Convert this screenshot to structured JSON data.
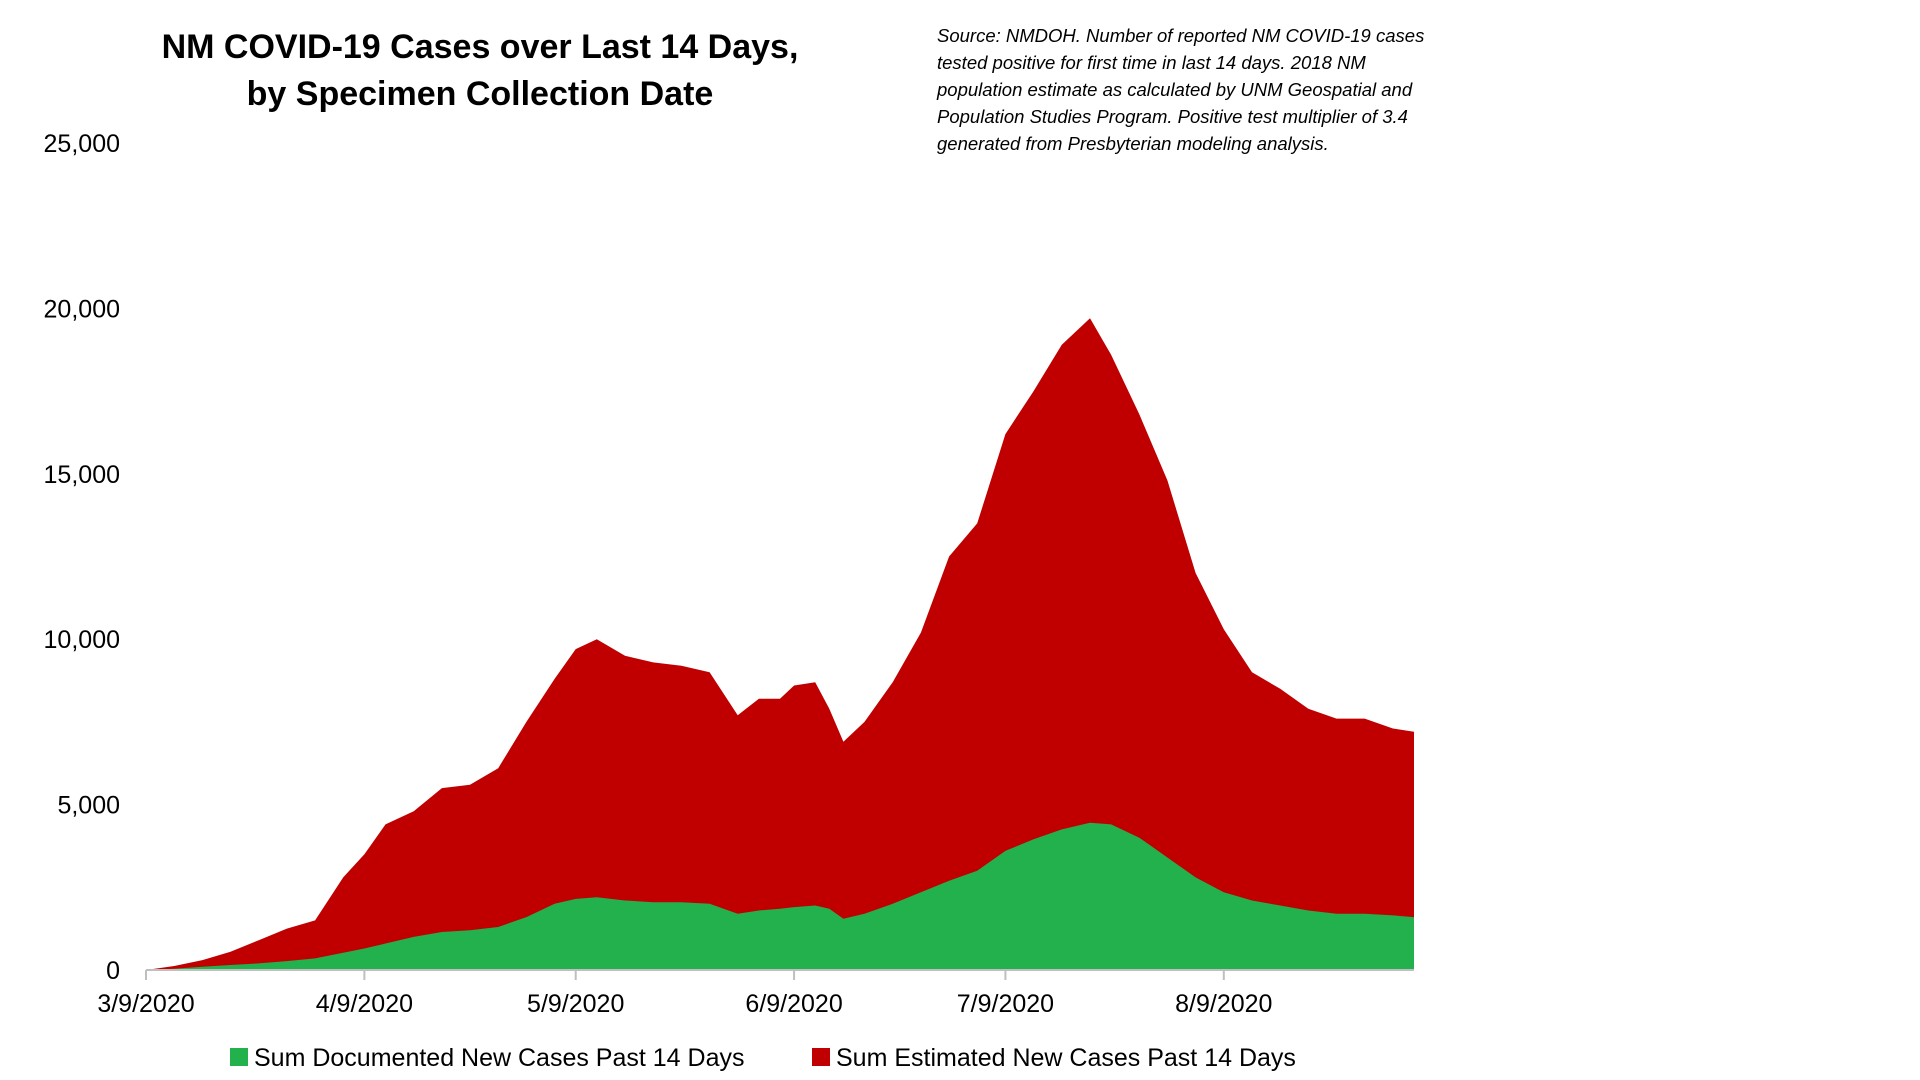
{
  "chart_data": {
    "type": "area",
    "stacked": true,
    "title_lines": [
      "NM COVID-19 Cases over Last 14 Days,",
      "by Specimen Collection Date"
    ],
    "source_note_lines": [
      "Source: NMDOH. Number of reported NM COVID-19 cases",
      "tested positive for first time in last 14 days. 2018 NM",
      "population estimate as calculated by UNM Geospatial and",
      "Population Studies Program. Positive test multiplier of 3.4",
      "generated from Presbyterian modeling analysis."
    ],
    "xlabel": "",
    "ylabel": "",
    "x_start": "2020-03-09",
    "x_end": "2020-09-05",
    "x_ticks": [
      {
        "date": "2020-03-09",
        "label": "3/9/2020"
      },
      {
        "date": "2020-04-09",
        "label": "4/9/2020"
      },
      {
        "date": "2020-05-09",
        "label": "5/9/2020"
      },
      {
        "date": "2020-06-09",
        "label": "6/9/2020"
      },
      {
        "date": "2020-07-09",
        "label": "7/9/2020"
      },
      {
        "date": "2020-08-09",
        "label": "8/9/2020"
      }
    ],
    "y_ticks": [
      {
        "value": 0,
        "label": "0"
      },
      {
        "value": 5000,
        "label": "5,000"
      },
      {
        "value": 10000,
        "label": "10,000"
      },
      {
        "value": 15000,
        "label": "15,000"
      },
      {
        "value": 20000,
        "label": "20,000"
      },
      {
        "value": 25000,
        "label": "25,000"
      }
    ],
    "ylim": [
      0,
      25000
    ],
    "grid": false,
    "legend_position": "bottom",
    "series": [
      {
        "name": "Sum Documented New Cases Past 14 Days",
        "color": "#22b14c",
        "points": [
          [
            "2020-03-09",
            0
          ],
          [
            "2020-03-13",
            40
          ],
          [
            "2020-03-17",
            100
          ],
          [
            "2020-03-21",
            150
          ],
          [
            "2020-03-25",
            200
          ],
          [
            "2020-03-29",
            270
          ],
          [
            "2020-04-02",
            350
          ],
          [
            "2020-04-06",
            520
          ],
          [
            "2020-04-09",
            650
          ],
          [
            "2020-04-12",
            800
          ],
          [
            "2020-04-16",
            1000
          ],
          [
            "2020-04-20",
            1150
          ],
          [
            "2020-04-24",
            1200
          ],
          [
            "2020-04-28",
            1300
          ],
          [
            "2020-05-02",
            1600
          ],
          [
            "2020-05-06",
            2000
          ],
          [
            "2020-05-09",
            2150
          ],
          [
            "2020-05-12",
            2200
          ],
          [
            "2020-05-16",
            2100
          ],
          [
            "2020-05-20",
            2050
          ],
          [
            "2020-05-24",
            2050
          ],
          [
            "2020-05-28",
            2000
          ],
          [
            "2020-06-01",
            1700
          ],
          [
            "2020-06-04",
            1800
          ],
          [
            "2020-06-07",
            1850
          ],
          [
            "2020-06-09",
            1900
          ],
          [
            "2020-06-12",
            1950
          ],
          [
            "2020-06-14",
            1850
          ],
          [
            "2020-06-16",
            1550
          ],
          [
            "2020-06-19",
            1700
          ],
          [
            "2020-06-23",
            2000
          ],
          [
            "2020-06-27",
            2350
          ],
          [
            "2020-07-01",
            2700
          ],
          [
            "2020-07-05",
            3000
          ],
          [
            "2020-07-09",
            3600
          ],
          [
            "2020-07-13",
            3950
          ],
          [
            "2020-07-17",
            4250
          ],
          [
            "2020-07-21",
            4450
          ],
          [
            "2020-07-24",
            4400
          ],
          [
            "2020-07-28",
            4000
          ],
          [
            "2020-08-01",
            3400
          ],
          [
            "2020-08-05",
            2800
          ],
          [
            "2020-08-09",
            2350
          ],
          [
            "2020-08-13",
            2100
          ],
          [
            "2020-08-17",
            1950
          ],
          [
            "2020-08-21",
            1800
          ],
          [
            "2020-08-25",
            1700
          ],
          [
            "2020-08-29",
            1700
          ],
          [
            "2020-09-02",
            1650
          ],
          [
            "2020-09-05",
            1600
          ]
        ]
      },
      {
        "name": "Sum Estimated New Cases Past 14 Days",
        "color": "#c00000",
        "points": [
          [
            "2020-03-09",
            0
          ],
          [
            "2020-03-13",
            120
          ],
          [
            "2020-03-17",
            300
          ],
          [
            "2020-03-21",
            550
          ],
          [
            "2020-03-25",
            900
          ],
          [
            "2020-03-29",
            1250
          ],
          [
            "2020-04-02",
            1500
          ],
          [
            "2020-04-06",
            2800
          ],
          [
            "2020-04-09",
            3500
          ],
          [
            "2020-04-12",
            4400
          ],
          [
            "2020-04-16",
            4800
          ],
          [
            "2020-04-20",
            5500
          ],
          [
            "2020-04-24",
            5600
          ],
          [
            "2020-04-28",
            6100
          ],
          [
            "2020-05-02",
            7500
          ],
          [
            "2020-05-06",
            8800
          ],
          [
            "2020-05-09",
            9700
          ],
          [
            "2020-05-12",
            10000
          ],
          [
            "2020-05-16",
            9500
          ],
          [
            "2020-05-20",
            9300
          ],
          [
            "2020-05-24",
            9200
          ],
          [
            "2020-05-28",
            9000
          ],
          [
            "2020-06-01",
            7700
          ],
          [
            "2020-06-04",
            8200
          ],
          [
            "2020-06-07",
            8200
          ],
          [
            "2020-06-09",
            8600
          ],
          [
            "2020-06-12",
            8700
          ],
          [
            "2020-06-14",
            7900
          ],
          [
            "2020-06-16",
            6900
          ],
          [
            "2020-06-19",
            7500
          ],
          [
            "2020-06-23",
            8700
          ],
          [
            "2020-06-27",
            10200
          ],
          [
            "2020-07-01",
            12500
          ],
          [
            "2020-07-05",
            13500
          ],
          [
            "2020-07-09",
            16200
          ],
          [
            "2020-07-13",
            17500
          ],
          [
            "2020-07-17",
            18900
          ],
          [
            "2020-07-21",
            19700
          ],
          [
            "2020-07-24",
            18600
          ],
          [
            "2020-07-28",
            16800
          ],
          [
            "2020-08-01",
            14800
          ],
          [
            "2020-08-05",
            12000
          ],
          [
            "2020-08-09",
            10300
          ],
          [
            "2020-08-13",
            9000
          ],
          [
            "2020-08-17",
            8500
          ],
          [
            "2020-08-21",
            7900
          ],
          [
            "2020-08-25",
            7600
          ],
          [
            "2020-08-29",
            7600
          ],
          [
            "2020-09-02",
            7300
          ],
          [
            "2020-09-05",
            7200
          ]
        ]
      }
    ]
  }
}
